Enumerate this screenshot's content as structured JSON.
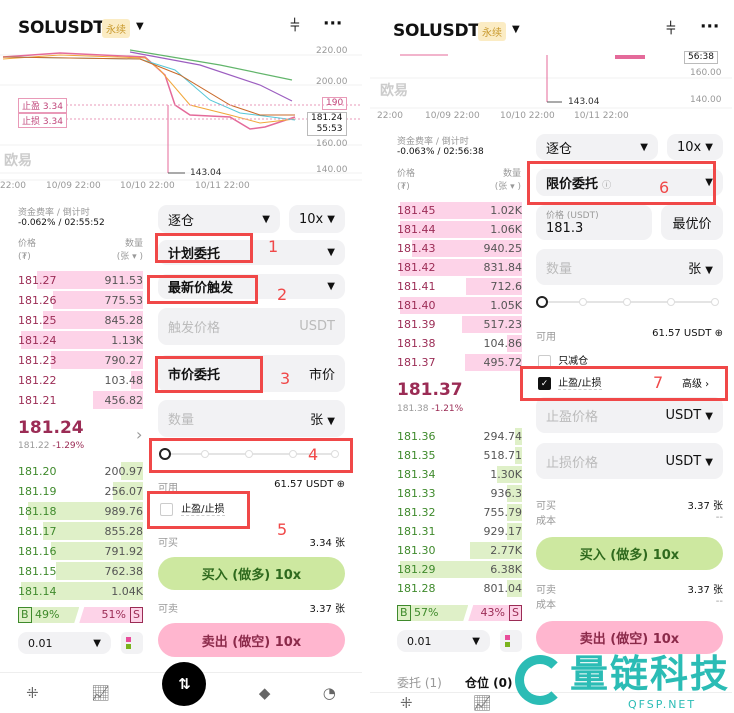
{
  "left": {
    "header": {
      "symbol": "SOLUSDT",
      "badge": "永续"
    },
    "chart": {
      "y_ticks": [
        "220.00",
        "200.00",
        "160.00",
        "140.00"
      ],
      "x_ticks": [
        "22:00",
        "10/09 22:00",
        "10/10 22:00",
        "10/11 22:00"
      ],
      "tp_label": "止盈",
      "tp_value": "3.34",
      "sl_label": "止损",
      "sl_value": "3.34",
      "line_190": "190",
      "last_price": "181.24",
      "countdown": "55:53",
      "low": "143.04",
      "watermark": "欧易"
    },
    "funding": {
      "label": "资金费率 / 倒计时",
      "value": "-0.062% / 02:55:52"
    },
    "margin_mode": "逐仓",
    "leverage": "10x",
    "book_header": {
      "price": "价格",
      "price_unit": "(₮)",
      "qty": "数量",
      "qty_unit": "(张 ▾ )"
    },
    "asks": [
      {
        "p": "181.27",
        "q": "911.53",
        "d": 0.85
      },
      {
        "p": "181.26",
        "q": "775.53",
        "d": 0.72
      },
      {
        "p": "181.25",
        "q": "845.28",
        "d": 0.8
      },
      {
        "p": "181.24",
        "q": "1.13K",
        "d": 0.98
      },
      {
        "p": "181.23",
        "q": "790.27",
        "d": 0.74
      },
      {
        "p": "181.22",
        "q": "103.48",
        "d": 0.1
      },
      {
        "p": "181.21",
        "q": "456.82",
        "d": 0.4
      }
    ],
    "mid": {
      "price": "181.24",
      "sub": "181.22",
      "change": "-1.29%"
    },
    "bids": [
      {
        "p": "181.20",
        "q": "200.97",
        "d": 0.18
      },
      {
        "p": "181.19",
        "q": "256.07",
        "d": 0.24
      },
      {
        "p": "181.18",
        "q": "989.76",
        "d": 0.92
      },
      {
        "p": "181.17",
        "q": "855.28",
        "d": 0.8
      },
      {
        "p": "181.16",
        "q": "791.92",
        "d": 0.74
      },
      {
        "p": "181.15",
        "q": "762.38",
        "d": 0.7
      },
      {
        "p": "181.14",
        "q": "1.04K",
        "d": 0.98
      }
    ],
    "ratio": {
      "b": "B",
      "b_pct": "49%",
      "s_pct": "51%",
      "s": "S",
      "buy_fraction": 0.49
    },
    "tick": "0.01",
    "form": {
      "order_type": "计划委托",
      "trigger_type": "最新价触发",
      "trigger_price_placeholder": "触发价格",
      "trigger_unit": "USDT",
      "exec_type": "市价委托",
      "exec_value": "市价",
      "qty_placeholder": "数量",
      "qty_unit": "张",
      "available_label": "可用",
      "available": "61.57 USDT",
      "tpsl": "止盈/止损",
      "can_buy_label": "可买",
      "can_buy": "3.34 张",
      "buy": "买入 (做多) 10x",
      "can_sell_label": "可卖",
      "can_sell": "3.37 张",
      "sell": "卖出 (做空) 10x",
      "slider_percent": 0
    },
    "annotations": [
      "1",
      "2",
      "3",
      "4",
      "5"
    ]
  },
  "right": {
    "header": {
      "symbol": "SOLUSDT",
      "badge": "永续"
    },
    "chart": {
      "y_ticks": [
        "160.00",
        "140.00"
      ],
      "x_ticks": [
        "22:00",
        "10/09 22:00",
        "10/10 22:00",
        "10/11 22:00"
      ],
      "countdown": "56:38",
      "low": "143.04",
      "watermark": "欧易"
    },
    "funding": {
      "label": "资金费率 / 倒计时",
      "value": "-0.063% / 02:56:38"
    },
    "margin_mode": "逐仓",
    "leverage": "10x",
    "book_header": {
      "price": "价格",
      "price_unit": "(₮)",
      "qty": "数量",
      "qty_unit": "(张 ▾ )"
    },
    "asks": [
      {
        "p": "181.45",
        "q": "1.02K",
        "d": 0.98
      },
      {
        "p": "181.44",
        "q": "1.06K",
        "d": 0.98
      },
      {
        "p": "181.43",
        "q": "940.25",
        "d": 0.88
      },
      {
        "p": "181.42",
        "q": "831.84",
        "d": 0.98
      },
      {
        "p": "181.41",
        "q": "712.6",
        "d": 0.45
      },
      {
        "p": "181.40",
        "q": "1.05K",
        "d": 0.98
      },
      {
        "p": "181.39",
        "q": "517.23",
        "d": 0.48
      },
      {
        "p": "181.38",
        "q": "104.86",
        "d": 0.12
      },
      {
        "p": "181.37",
        "q": "495.72",
        "d": 0.46
      }
    ],
    "mid": {
      "price": "181.37",
      "sub": "181.38",
      "change": "-1.21%"
    },
    "bids": [
      {
        "p": "181.36",
        "q": "294.74",
        "d": 0.06
      },
      {
        "p": "181.35",
        "q": "518.71",
        "d": 0.06
      },
      {
        "p": "181.34",
        "q": "1.30K",
        "d": 0.2
      },
      {
        "p": "181.33",
        "q": "936.3",
        "d": 0.12
      },
      {
        "p": "181.32",
        "q": "755.79",
        "d": 0.12
      },
      {
        "p": "181.31",
        "q": "929.17",
        "d": 0.12
      },
      {
        "p": "181.30",
        "q": "2.77K",
        "d": 0.42
      },
      {
        "p": "181.29",
        "q": "6.38K",
        "d": 0.98
      },
      {
        "p": "181.28",
        "q": "801.04",
        "d": 0.12
      }
    ],
    "ratio": {
      "b": "B",
      "b_pct": "57%",
      "s_pct": "43%",
      "s": "S",
      "buy_fraction": 0.57
    },
    "tick": "0.01",
    "form": {
      "order_type": "限价委托",
      "price_label": "价格 (USDT)",
      "price": "181.3",
      "best_price": "最优价",
      "qty_placeholder": "数量",
      "qty_unit": "张",
      "available_label": "可用",
      "available": "61.57 USDT",
      "reduce_only": "只减仓",
      "tpsl": "止盈/止损",
      "advanced": "高级 ›",
      "tp_placeholder": "止盈价格",
      "sl_placeholder": "止损价格",
      "unit": "USDT",
      "can_buy_label": "可买",
      "can_buy": "3.37 张",
      "cost_label": "成本",
      "cost": "--",
      "buy": "买入 (做多) 10x",
      "can_sell_label": "可卖",
      "can_sell": "3.37 张",
      "cost2": "--",
      "sell": "卖出 (做空) 10x",
      "slider_percent": 0
    },
    "tabs": [
      "委托 (1)",
      "仓位 (0)"
    ],
    "annotations": [
      "6",
      "7"
    ]
  },
  "watermark": {
    "brand": "量链科技",
    "url": "QFSP.NET"
  }
}
